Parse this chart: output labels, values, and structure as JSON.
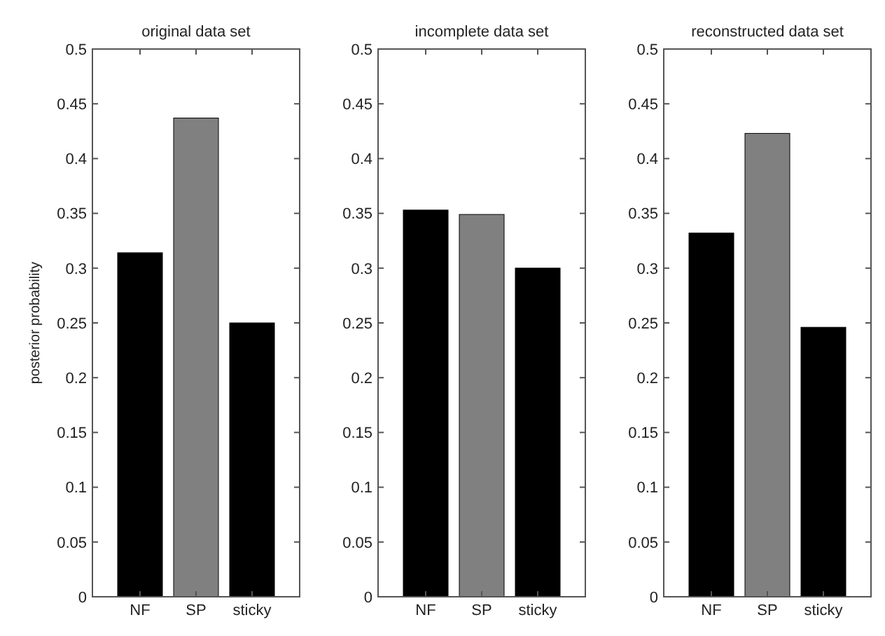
{
  "chart_data": [
    {
      "type": "bar",
      "title": "original data set",
      "ylabel": "posterior probability",
      "categories": [
        "NF",
        "SP",
        "sticky"
      ],
      "values": [
        0.314,
        0.437,
        0.25
      ],
      "colors": [
        "#000000",
        "#808080",
        "#000000"
      ],
      "ylim": [
        0,
        0.5
      ],
      "yticks": [
        0,
        0.05,
        0.1,
        0.15,
        0.2,
        0.25,
        0.3,
        0.35,
        0.4,
        0.45,
        0.5
      ],
      "grid": false
    },
    {
      "type": "bar",
      "title": "incomplete data set",
      "categories": [
        "NF",
        "SP",
        "sticky"
      ],
      "values": [
        0.353,
        0.349,
        0.3
      ],
      "colors": [
        "#000000",
        "#808080",
        "#000000"
      ],
      "ylim": [
        0,
        0.5
      ],
      "yticks": [
        0,
        0.05,
        0.1,
        0.15,
        0.2,
        0.25,
        0.3,
        0.35,
        0.4,
        0.45,
        0.5
      ],
      "grid": false
    },
    {
      "type": "bar",
      "title": "reconstructed data set",
      "categories": [
        "NF",
        "SP",
        "sticky"
      ],
      "values": [
        0.332,
        0.423,
        0.246
      ],
      "colors": [
        "#000000",
        "#808080",
        "#000000"
      ],
      "ylim": [
        0,
        0.5
      ],
      "yticks": [
        0,
        0.05,
        0.1,
        0.15,
        0.2,
        0.25,
        0.3,
        0.35,
        0.4,
        0.45,
        0.5
      ],
      "grid": false
    }
  ]
}
